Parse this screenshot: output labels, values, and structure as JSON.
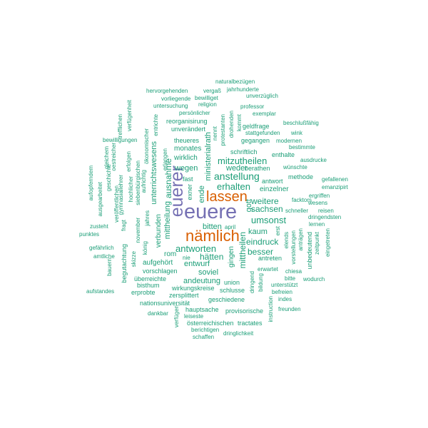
{
  "colors": {
    "teal": "#1b9e77",
    "orange": "#d95f02",
    "purple": "#7570b3"
  },
  "words": [
    "euere",
    "euerer",
    "nämlich",
    "lassen",
    "erhalten",
    "anstellung",
    "mitzutheilen",
    "weder",
    "einzelner",
    "weitere",
    "sachsen",
    "umsonst",
    "kaum",
    "eindruck",
    "bitten",
    "antworten",
    "hätten",
    "entwurf",
    "soviel",
    "andeutung",
    "besser",
    "mittheilen",
    "gingen",
    "gott",
    "ministerialrath",
    "ende",
    "exner",
    "monates",
    "wirklich",
    "wegen",
    "ausnahme",
    "unterrichtswesens",
    "verbunden",
    "mittheilung",
    "rom",
    "aufgehört",
    "vorschlagen",
    "überreichte",
    "bisthum",
    "erprobte",
    "nationsuniversität",
    "dankbar",
    "verfügen",
    "leiseste",
    "hauptsache",
    "österreichischen",
    "berichtigen",
    "schaffen",
    "dringlichkeit",
    "provisorische",
    "tractates",
    "geschiedene",
    "schlusse",
    "union",
    "zersplittert",
    "wirkungskreise",
    "naturalbezügen",
    "jahrhunderte",
    "vergaß",
    "hervorgehenden",
    "vorliegende",
    "bewilliget",
    "unverzüglich",
    "persönlicher",
    "religion",
    "professor",
    "untersuchung",
    "exemplar",
    "reorganisirung",
    "beschlußfähig",
    "unverändert",
    "geldfrage",
    "stattgefunden",
    "wink",
    "gegangen",
    "bestimmte",
    "theueres",
    "schriftlich",
    "enthalte",
    "ausdrucke",
    "berathen",
    "wünschte",
    "methode",
    "gefallenen",
    "emanzipirt",
    "antwort",
    "ergriffen",
    "wesens",
    "facktors",
    "schneller",
    "reisen",
    "dringendsten",
    "lernen",
    "eingetreten",
    "zeitpunkt",
    "unbedeutend",
    "anträgen",
    "vorstellungen",
    "elends",
    "erst",
    "antreten",
    "erwartet",
    "chiesa",
    "wodurch",
    "bitte",
    "unterstützt",
    "befreien",
    "indes",
    "freunden",
    "instruction",
    "bildung",
    "dringend",
    "april",
    "fast",
    "nie",
    "könig",
    "bauern",
    "amtliche",
    "gefährlich",
    "punktes",
    "zusteht",
    "aufstandes",
    "begutachtung",
    "skizze",
    "november",
    "gymnasiallehrer",
    "siebenbürgischen",
    "jahres",
    "fragt",
    "hochlicher",
    "aufrichtig",
    "erfolgen",
    "ökonomischer",
    "erlangen",
    "entrichte",
    "veröffentlichen",
    "geschichte",
    "ausgearbeitet",
    "aufopferndem",
    "gleichem",
    "oestreicher",
    "trefflichen",
    "verfügenheit",
    "bewilligungen",
    "drohenden",
    "protestanten",
    "nennt",
    "kommt",
    "modernen"
  ]
}
